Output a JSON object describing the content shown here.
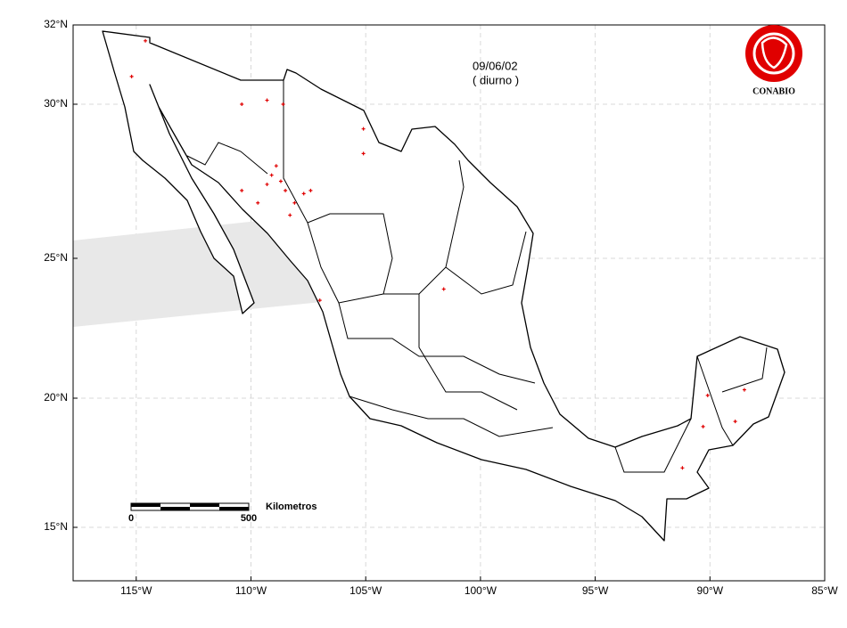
{
  "chart_data": {
    "type": "map",
    "date": "09/06/02",
    "subtitle": "( diurno )",
    "logo_text": "CONABIO",
    "scale_label": "Kilometros",
    "scale_start": "0",
    "scale_end": "500",
    "xlim": [
      -117.75,
      -85
    ],
    "ylim": [
      13,
      32
    ],
    "xticks": [
      {
        "value": -115,
        "label": "115°W"
      },
      {
        "value": -110,
        "label": "110°W"
      },
      {
        "value": -105,
        "label": "105°W"
      },
      {
        "value": -100,
        "label": "100°W"
      },
      {
        "value": -95,
        "label": "95°W"
      },
      {
        "value": -90,
        "label": "90°W"
      },
      {
        "value": -85,
        "label": "85°W"
      }
    ],
    "yticks": [
      {
        "value": 15,
        "label": "15°N"
      },
      {
        "value": 20,
        "label": "20°N"
      },
      {
        "value": 25,
        "label": "25°N"
      },
      {
        "value": 30,
        "label": "30°N"
      },
      {
        "value": 32,
        "label": "32°N"
      }
    ],
    "grid": true,
    "color": "#e00000",
    "hotspots": {
      "x": [
        -114.6,
        -115.2,
        -110.4,
        -109.3,
        -108.6,
        -105.1,
        -105.1,
        -109.1,
        -108.9,
        -108.7,
        -109.3,
        -108.5,
        -108.1,
        -107.7,
        -107.4,
        -109.7,
        -108.3,
        -110.4,
        -101.6,
        -107.0,
        -90.1,
        -88.5,
        -90.3,
        -88.9,
        -91.2
      ],
      "y": [
        31.6,
        30.7,
        30.0,
        30.1,
        30.0,
        29.2,
        28.4,
        27.7,
        28.0,
        27.5,
        27.4,
        27.2,
        26.8,
        27.1,
        27.2,
        26.8,
        26.4,
        27.2,
        23.9,
        23.5,
        20.1,
        20.3,
        18.9,
        19.1,
        17.3
      ]
    }
  }
}
